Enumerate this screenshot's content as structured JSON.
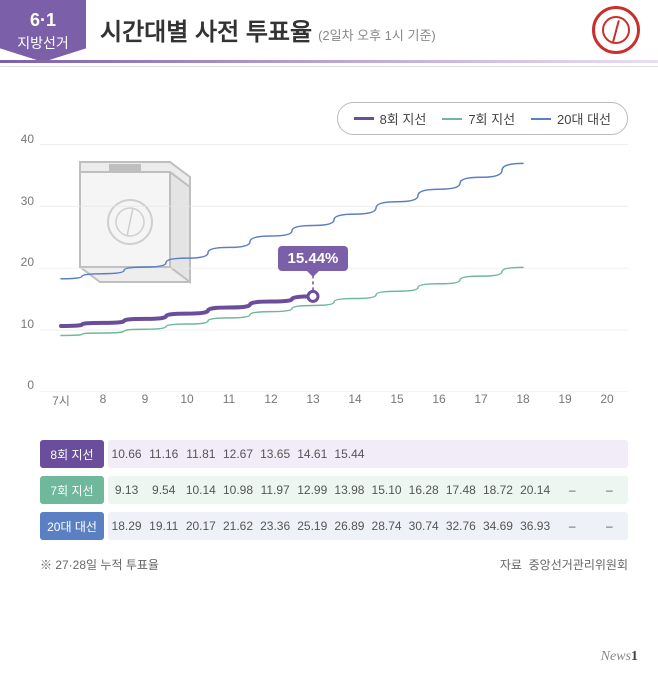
{
  "badge": {
    "top": "6·1",
    "bottom": "지방선거"
  },
  "title": "시간대별 사전 투표율",
  "subtitle": "(2일차 오후 1시 기준)",
  "legend": [
    {
      "label": "8회 지선",
      "color": "#6b4e9b",
      "thick": true
    },
    {
      "label": "7회 지선",
      "color": "#6fb89b",
      "thick": false
    },
    {
      "label": "20대 대선",
      "color": "#5a7fc2",
      "thick": false
    }
  ],
  "chart": {
    "type": "line",
    "ylim": [
      0,
      42
    ],
    "yticks": [
      0,
      10,
      20,
      30,
      40
    ],
    "xticks": [
      "7시",
      "8",
      "9",
      "10",
      "11",
      "12",
      "13",
      "14",
      "15",
      "16",
      "17",
      "18",
      "19",
      "20"
    ],
    "background_color": "#ffffff",
    "grid_color": "#e8e8e8",
    "series": [
      {
        "name": "8회 지선",
        "color": "#6b4e9b",
        "width": 4,
        "data": [
          10.66,
          11.16,
          11.81,
          12.67,
          13.65,
          14.61,
          15.44
        ],
        "highlight": {
          "index": 6,
          "label": "15.44%",
          "marker_fill": "#ffffff",
          "marker_stroke": "#6b4e9b"
        }
      },
      {
        "name": "7회 지선",
        "color": "#6fb89b",
        "width": 1.5,
        "data": [
          9.13,
          9.54,
          10.14,
          10.98,
          11.97,
          12.99,
          13.98,
          15.1,
          16.28,
          17.48,
          18.72,
          20.14
        ]
      },
      {
        "name": "20대 대선",
        "color": "#5a7fc2",
        "width": 1.5,
        "data": [
          18.29,
          19.11,
          20.17,
          21.62,
          23.36,
          25.19,
          26.89,
          28.74,
          30.74,
          32.76,
          34.69,
          36.93
        ]
      }
    ],
    "title_fontsize": 24,
    "label_fontsize": 12
  },
  "table": {
    "columns": [
      "7시",
      "8",
      "9",
      "10",
      "11",
      "12",
      "13",
      "14",
      "15",
      "16",
      "17",
      "18",
      "19",
      "20"
    ],
    "rows": [
      {
        "label": "8회 지선",
        "label_bg": "#6b4e9b",
        "row_bg": "#f1ecf7",
        "cells": [
          "10.66",
          "11.16",
          "11.81",
          "12.67",
          "13.65",
          "14.61",
          "15.44",
          "",
          "",
          "",
          "",
          "",
          "",
          ""
        ]
      },
      {
        "label": "7회 지선",
        "label_bg": "#6fb89b",
        "row_bg": "#eef6f2",
        "cells": [
          "9.13",
          "9.54",
          "10.14",
          "10.98",
          "11.97",
          "12.99",
          "13.98",
          "15.10",
          "16.28",
          "17.48",
          "18.72",
          "20.14",
          "–",
          "–"
        ]
      },
      {
        "label": "20대 대선",
        "label_bg": "#5a7fc2",
        "row_bg": "#eef2f8",
        "cells": [
          "18.29",
          "19.11",
          "20.17",
          "21.62",
          "23.36",
          "25.19",
          "26.89",
          "28.74",
          "30.74",
          "32.76",
          "34.69",
          "36.93",
          "–",
          "–"
        ]
      }
    ]
  },
  "footnote": {
    "note": "※ 27·28일 누적 투표율",
    "source_label": "자료",
    "source": "중앙선거관리위원회"
  },
  "logo": {
    "text": "News",
    "num": "1"
  },
  "colors": {
    "accent": "#7b5fa8",
    "red": "#c9302c",
    "text": "#333333",
    "muted": "#888888"
  }
}
